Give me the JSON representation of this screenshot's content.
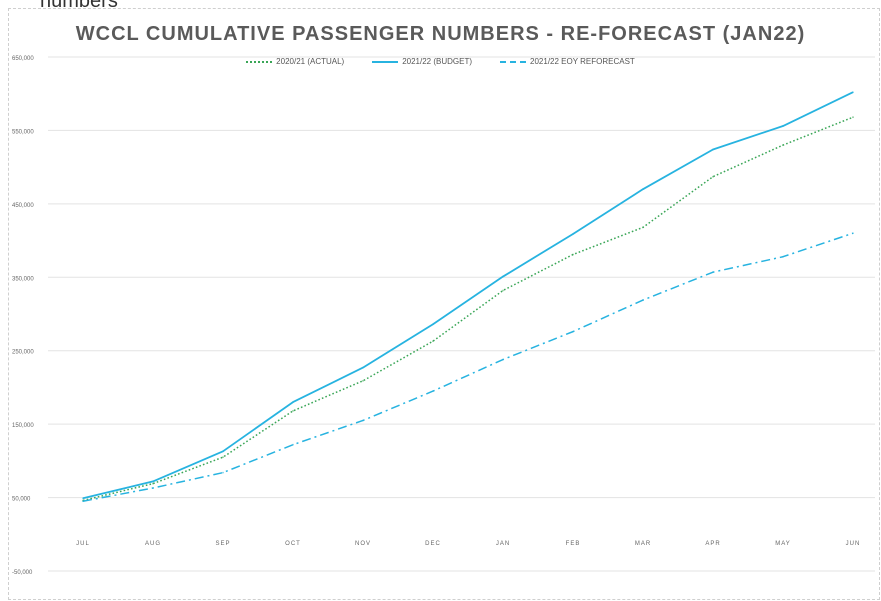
{
  "top_fragment": "numbers",
  "chart_data": {
    "type": "line",
    "title": "WCCL CUMULATIVE PASSENGER NUMBERS - RE-FORECAST (JAN22)",
    "categories": [
      "JUL",
      "AUG",
      "SEP",
      "OCT",
      "NOV",
      "DEC",
      "JAN",
      "FEB",
      "MAR",
      "APR",
      "MAY",
      "JUN"
    ],
    "ylim": [
      -50000,
      650000
    ],
    "yticks": [
      -50000,
      50000,
      150000,
      250000,
      350000,
      450000,
      550000,
      650000
    ],
    "ytick_labels": [
      "-50,000",
      "50,000",
      "150,000",
      "250,000",
      "350,000",
      "450,000",
      "550,000",
      "650,000"
    ],
    "grid": true,
    "legend_position": "top",
    "series": [
      {
        "name": "2020/21 (ACTUAL)",
        "style": "dotted",
        "color": "#3aa657",
        "values": [
          46000,
          69000,
          105000,
          168000,
          209000,
          263000,
          332000,
          381000,
          418000,
          487000,
          530000,
          568000
        ]
      },
      {
        "name": "2021/22 (BUDGET)",
        "style": "solid",
        "color": "#27b3e0",
        "values": [
          49000,
          72000,
          113000,
          180000,
          227000,
          286000,
          351000,
          409000,
          470000,
          524000,
          556000,
          602000
        ]
      },
      {
        "name": "2021/22 EOY REFORECAST",
        "style": "dashdot",
        "color": "#27b3e0",
        "values": [
          45000,
          63000,
          84000,
          122000,
          155000,
          195000,
          238000,
          276000,
          319000,
          357000,
          378000,
          410000
        ]
      }
    ]
  }
}
